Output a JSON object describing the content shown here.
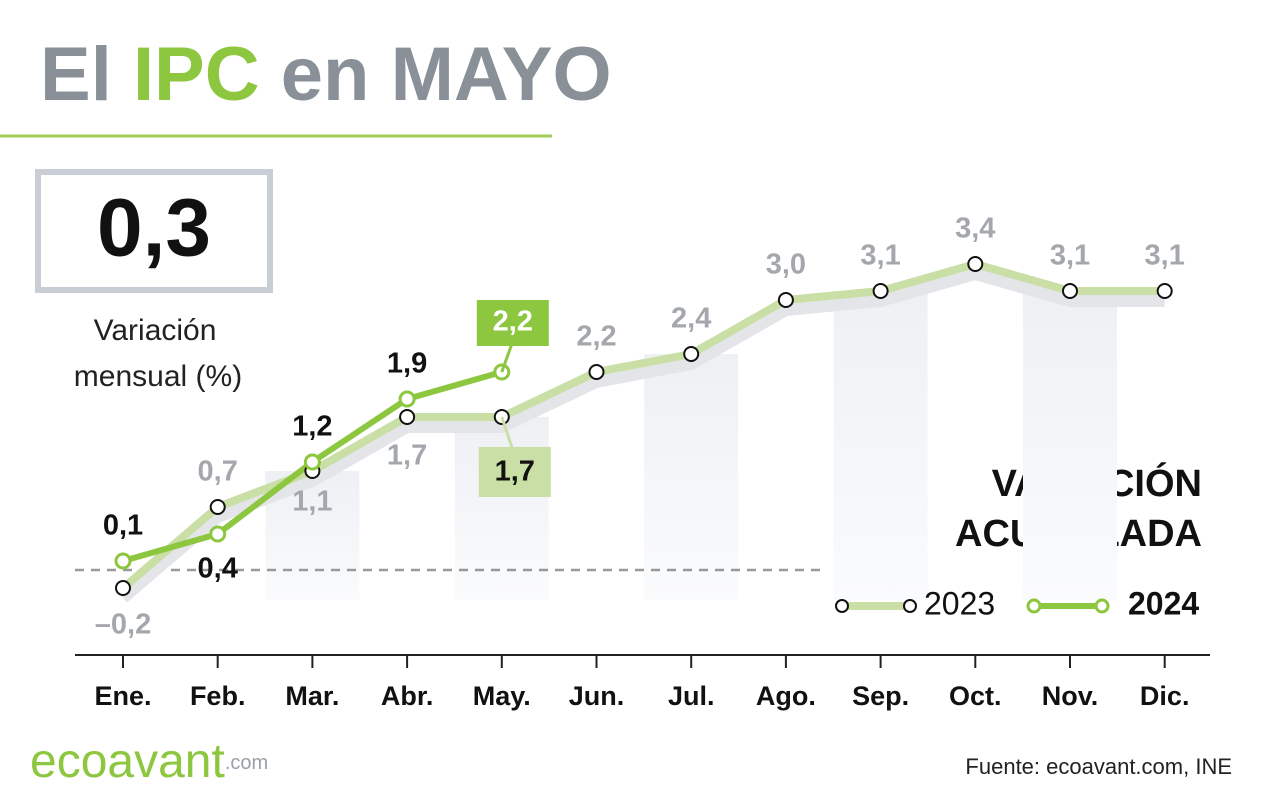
{
  "title": [
    "El",
    "IPC",
    "en MAYO"
  ],
  "monthly": {
    "value": 0.3,
    "label": "0,3"
  },
  "monthly_caption": [
    "Variación",
    "mensual (%)"
  ],
  "chart_data": {
    "type": "line",
    "subtitle": [
      "VARIACIÓN",
      "ACUMULADA"
    ],
    "categories": [
      "Ene.",
      "Feb.",
      "Mar.",
      "Abr.",
      "May.",
      "Jun.",
      "Jul.",
      "Ago.",
      "Sep.",
      "Oct.",
      "Nov.",
      "Dic."
    ],
    "ylim": [
      -1,
      4
    ],
    "series": [
      {
        "name": "2023",
        "color": "#c9dfa6",
        "values": [
          -0.2,
          0.7,
          1.1,
          1.7,
          1.7,
          2.2,
          2.4,
          3.0,
          3.1,
          3.4,
          3.1,
          3.1
        ],
        "value_labels": [
          "–0,2",
          "0,7",
          "1,1",
          "1,7",
          "1,7",
          "2,2",
          "2,4",
          "3,0",
          "3,1",
          "3,4",
          "3,1",
          "3,1"
        ]
      },
      {
        "name": "2024",
        "color": "#8dc63f",
        "values": [
          0.1,
          0.4,
          1.2,
          1.9,
          2.2,
          null,
          null,
          null,
          null,
          null,
          null,
          null
        ],
        "value_labels": [
          "0,1",
          "0,4",
          "1,2",
          "1,9",
          "2,2",
          null,
          null,
          null,
          null,
          null,
          null,
          null
        ]
      }
    ]
  },
  "source": "Fuente: ecoavant.com, INE",
  "logo": [
    "ecoavant",
    ".com"
  ]
}
